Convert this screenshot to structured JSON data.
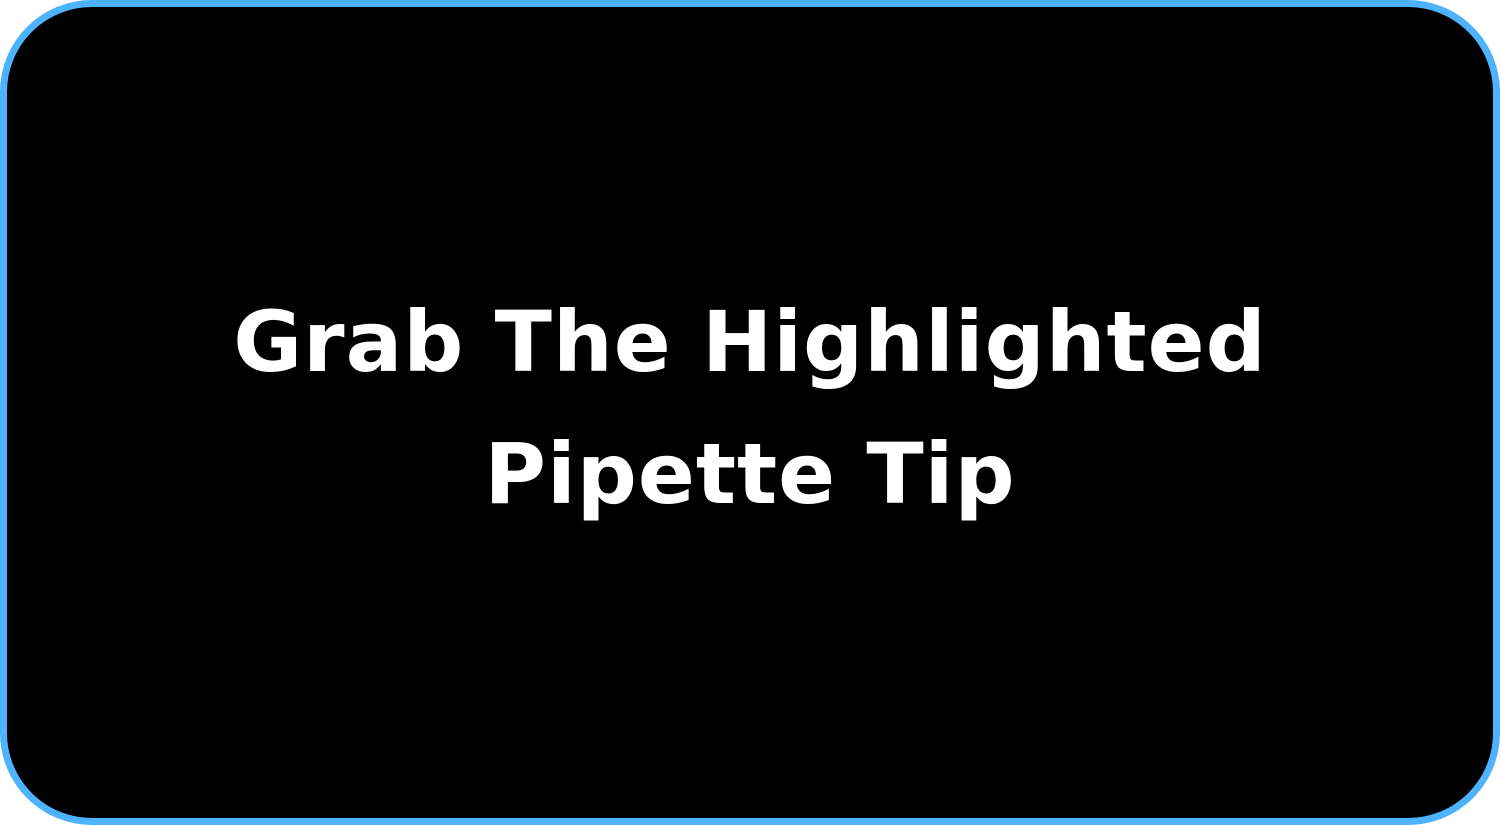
{
  "instruction_panel": {
    "text": "Grab The Highlighted Pipette Tip"
  },
  "colors": {
    "panel_background": "#000000",
    "panel_border": "#4db3ff",
    "text": "#ffffff"
  }
}
